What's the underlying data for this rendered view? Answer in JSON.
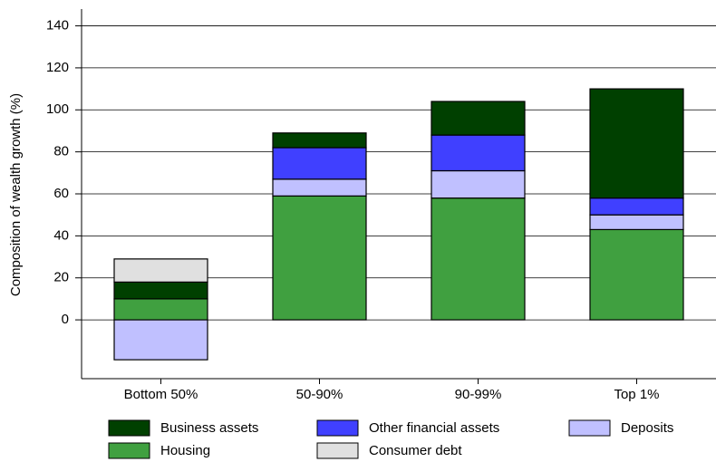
{
  "chart_data": {
    "type": "stacked-bar",
    "y_label": "Composition of wealth growth (%)",
    "categories": [
      "Bottom 50%",
      "50-90%",
      "90-99%",
      "Top 1%"
    ],
    "series": [
      {
        "name": "Business assets",
        "color": "#004000",
        "values": [
          8,
          7,
          16,
          52
        ]
      },
      {
        "name": "Other financial assets",
        "color": "#4040ff",
        "values": [
          0,
          15,
          17,
          8
        ]
      },
      {
        "name": "Deposits",
        "color": "#c0c0ff",
        "values": [
          -19,
          8,
          13,
          7
        ]
      },
      {
        "name": "Housing",
        "color": "#40a040",
        "values": [
          10,
          59,
          58,
          43
        ]
      },
      {
        "name": "Consumer debt",
        "color": "#e0e0e0",
        "values": [
          11,
          0,
          0,
          0
        ]
      }
    ],
    "ylim": [
      -28,
      148
    ],
    "yticks": [
      0,
      20,
      40,
      60,
      80,
      100,
      120,
      140
    ],
    "grid": true
  }
}
